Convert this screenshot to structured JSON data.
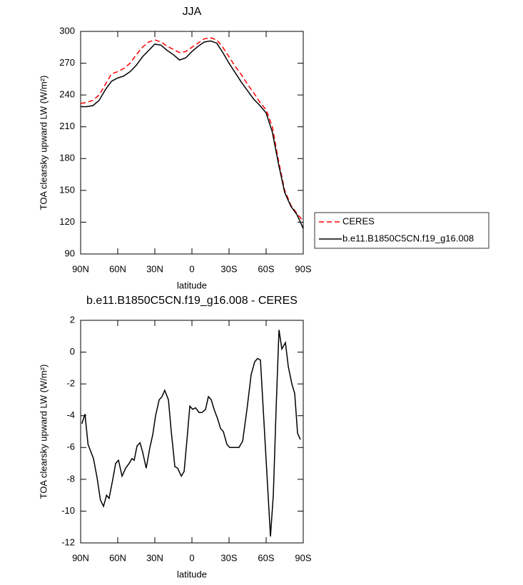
{
  "chart_data": [
    {
      "type": "line",
      "title": "JJA",
      "xlabel": "latitude",
      "ylabel": "TOA clearsky upward LW (W/m²)",
      "x": [
        90,
        85,
        80,
        75,
        70,
        65,
        60,
        55,
        50,
        45,
        40,
        35,
        30,
        25,
        20,
        15,
        10,
        5,
        0,
        -5,
        -10,
        -15,
        -20,
        -25,
        -30,
        -35,
        -40,
        -45,
        -50,
        -55,
        -60,
        -65,
        -70,
        -75,
        -80,
        -85,
        -90
      ],
      "series": [
        {
          "name": "CERES",
          "color": "#ff0000",
          "dash": true,
          "values": [
            232,
            233,
            235,
            240,
            250,
            260,
            262,
            265,
            270,
            278,
            285,
            290,
            292,
            290,
            286,
            283,
            280,
            281,
            285,
            289,
            293,
            294,
            292,
            285,
            276,
            267,
            259,
            250,
            242,
            233,
            226,
            210,
            178,
            150,
            136,
            128,
            121
          ]
        },
        {
          "name": "b.e11.B1850C5CN.f19_g16.008",
          "color": "#000000",
          "dash": false,
          "values": [
            229,
            229,
            230,
            235,
            245,
            253,
            256,
            258,
            262,
            268,
            276,
            282,
            288,
            287,
            282,
            278,
            273,
            275,
            281,
            286,
            290,
            291,
            289,
            280,
            270,
            261,
            252,
            244,
            236,
            230,
            223,
            205,
            175,
            148,
            135,
            127,
            114
          ]
        }
      ],
      "xlim": [
        90,
        -90
      ],
      "ylim": [
        90,
        300
      ],
      "xticks": [
        {
          "value": 90,
          "label": "90N"
        },
        {
          "value": 60,
          "label": "60N"
        },
        {
          "value": 30,
          "label": "30N"
        },
        0,
        {
          "value": -30,
          "label": "30S"
        },
        {
          "value": -60,
          "label": "60S"
        },
        {
          "value": -90,
          "label": "90S"
        }
      ],
      "yticks": [
        90,
        120,
        150,
        180,
        210,
        240,
        270,
        300
      ],
      "legend": "right"
    },
    {
      "type": "line",
      "title": "b.e11.B1850C5CN.f19_g16.008 - CERES",
      "xlabel": "latitude",
      "ylabel": "TOA clearsky upward LW (W/m²)",
      "x": [
        89,
        86.5,
        84,
        79.6,
        76.7,
        74,
        71.5,
        69,
        67,
        64,
        61.7,
        59.4,
        56.5,
        53.6,
        50.8,
        48.5,
        46.7,
        44.4,
        42,
        39.8,
        37,
        34,
        31.7,
        29.4,
        26.5,
        24.2,
        22,
        19,
        16.7,
        13.8,
        11.5,
        8.6,
        6.3,
        4,
        1.7,
        -0.6,
        -2.9,
        -5.8,
        -8.1,
        -11,
        -13.3,
        -15.6,
        -17.9,
        -20.8,
        -23.1,
        -25.4,
        -28.3,
        -30.6,
        -32.9,
        -38,
        -41,
        -44.5,
        -47.9,
        -50.8,
        -53.1,
        -55.4,
        -63.5,
        -65.8,
        -68.1,
        -70.4,
        -72.7,
        -75.6,
        -77.9,
        -80.8,
        -83.1,
        -85.4,
        -87.7
      ],
      "series": [
        {
          "name": "b.e11.B1850C5CN.f19_g16.008 - CERES",
          "color": "#000000",
          "dash": false,
          "values": [
            -4.5,
            -3.9,
            -5.8,
            -6.7,
            -7.9,
            -9.3,
            -9.7,
            -9.0,
            -9.2,
            -8.0,
            -7.0,
            -6.8,
            -7.8,
            -7.3,
            -7.0,
            -6.7,
            -6.8,
            -5.9,
            -5.7,
            -6.3,
            -7.3,
            -6.0,
            -5.2,
            -4.0,
            -3.0,
            -2.8,
            -2.4,
            -3.0,
            -5.0,
            -7.2,
            -7.3,
            -7.8,
            -7.5,
            -5.5,
            -3.4,
            -3.6,
            -3.5,
            -3.8,
            -3.8,
            -3.6,
            -2.8,
            -3.0,
            -3.6,
            -4.2,
            -4.8,
            -5.0,
            -5.8,
            -6.0,
            -6.0,
            -6.0,
            -5.6,
            -3.6,
            -1.4,
            -0.6,
            -0.4,
            -0.5,
            -11.6,
            -9.0,
            -3.5,
            1.4,
            0.2,
            0.6,
            -0.9,
            -2.0,
            -2.6,
            -5.1,
            -5.5
          ]
        }
      ],
      "xlim": [
        90,
        -90
      ],
      "ylim": [
        -12,
        2
      ],
      "xticks": [
        {
          "value": 90,
          "label": "90N"
        },
        {
          "value": 60,
          "label": "60N"
        },
        {
          "value": 30,
          "label": "30N"
        },
        0,
        {
          "value": -30,
          "label": "30S"
        },
        {
          "value": -60,
          "label": "60S"
        },
        {
          "value": -90,
          "label": "90S"
        }
      ],
      "yticks": [
        -12,
        -10,
        -8,
        -6,
        -4,
        -2,
        0,
        2
      ]
    }
  ]
}
